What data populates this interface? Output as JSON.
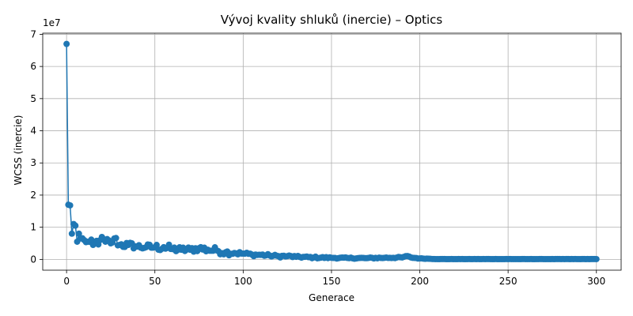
{
  "chart_data": {
    "type": "line",
    "title": "Vývoj kvality shluků (inercie) – Optics",
    "xlabel": "Generace",
    "ylabel": "WCSS (inercie)",
    "y_offset_text": "1e7",
    "xlim": [
      -13.5,
      314
    ],
    "ylim": [
      -0.335,
      7.035
    ],
    "y_scale": 10000000,
    "xticks": [
      0,
      50,
      100,
      150,
      200,
      250,
      300
    ],
    "yticks": [
      0,
      1,
      2,
      3,
      4,
      5,
      6,
      7
    ],
    "grid": true,
    "series": [
      {
        "color": "#1f77b4",
        "marker": "circle",
        "keypoints_x": [
          0,
          1,
          2,
          3,
          4,
          5,
          6,
          7,
          8,
          10,
          12,
          15,
          19,
          22,
          25,
          27,
          30,
          35,
          40,
          45,
          50,
          55,
          60,
          65,
          70,
          75,
          80,
          85,
          90,
          95,
          100,
          105,
          110,
          115,
          120,
          125,
          130,
          140,
          150,
          160,
          170,
          180,
          190,
          192,
          195,
          200,
          205,
          210,
          220,
          230,
          240,
          250,
          260,
          270,
          280,
          290,
          300
        ],
        "keypoints_y": [
          6.7,
          1.7,
          1.68,
          0.8,
          1.1,
          1.05,
          0.55,
          0.8,
          0.65,
          0.6,
          0.55,
          0.45,
          0.6,
          0.55,
          0.5,
          0.65,
          0.45,
          0.45,
          0.4,
          0.38,
          0.38,
          0.38,
          0.32,
          0.3,
          0.3,
          0.35,
          0.3,
          0.28,
          0.22,
          0.2,
          0.18,
          0.15,
          0.14,
          0.12,
          0.1,
          0.1,
          0.08,
          0.06,
          0.05,
          0.04,
          0.04,
          0.05,
          0.06,
          0.1,
          0.06,
          0.03,
          0.02,
          0.01,
          0.01,
          0.01,
          0.01,
          0.01,
          0.01,
          0.01,
          0.01,
          0.01,
          0.01
        ],
        "noise_amplitude_y": [
          0,
          0,
          0,
          0,
          0,
          0,
          0,
          0,
          0.1,
          0.1,
          0.1,
          0.15,
          0.15,
          0.15,
          0.15,
          0.15,
          0.12,
          0.1,
          0.1,
          0.1,
          0.1,
          0.15,
          0.1,
          0.1,
          0.1,
          0.1,
          0.12,
          0.1,
          0.1,
          0.06,
          0.06,
          0.05,
          0.05,
          0.04,
          0.04,
          0.04,
          0.03,
          0.03,
          0.02,
          0.02,
          0.02,
          0.02,
          0.02,
          0.03,
          0.02,
          0.01,
          0.005,
          0.003,
          0.002,
          0.002,
          0.002,
          0.002,
          0.002,
          0.002,
          0.002,
          0.002,
          0.002
        ]
      }
    ]
  }
}
